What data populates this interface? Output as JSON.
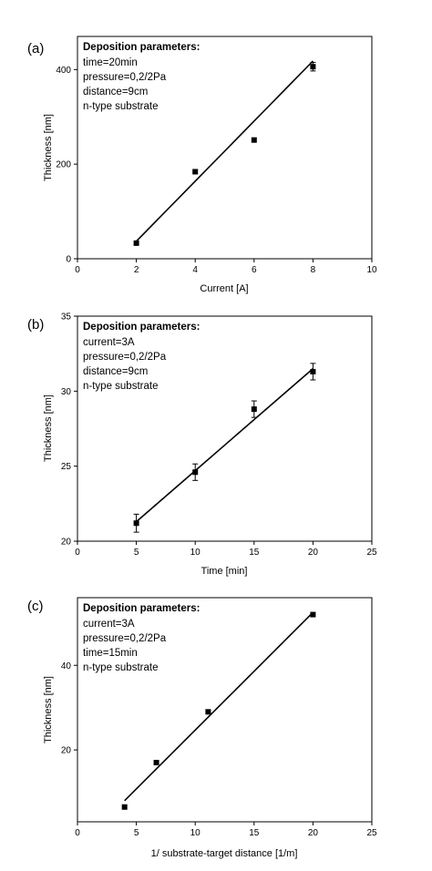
{
  "chart_data": [
    {
      "type": "scatter",
      "panel_label": "(a)",
      "xlabel": "Current [A]",
      "ylabel": "Thickness [nm]",
      "xlim": [
        0,
        10
      ],
      "ylim": [
        0,
        470
      ],
      "xticks": [
        0,
        2,
        4,
        6,
        8,
        10
      ],
      "yticks": [
        0,
        200,
        400
      ],
      "x": [
        2,
        4,
        6,
        8
      ],
      "y": [
        33,
        184,
        251,
        406
      ],
      "yerr": [
        0,
        0,
        0,
        9
      ],
      "fit": {
        "x": [
          2,
          8
        ],
        "y": [
          37,
          418
        ]
      },
      "annotation": {
        "title": "Deposition parameters:",
        "lines": [
          "time=20min",
          "pressure=0,2/2Pa",
          "distance=9cm",
          "n-type substrate"
        ]
      }
    },
    {
      "type": "scatter",
      "panel_label": "(b)",
      "xlabel": "Time [min]",
      "ylabel": "Thickness [nm]",
      "xlim": [
        0,
        25
      ],
      "ylim": [
        20,
        35
      ],
      "xticks": [
        0,
        5,
        10,
        15,
        20,
        25
      ],
      "yticks": [
        20,
        25,
        30,
        35
      ],
      "x": [
        5,
        10,
        15,
        20
      ],
      "y": [
        21.2,
        24.6,
        28.8,
        31.3
      ],
      "yerr": [
        0.6,
        0.55,
        0.55,
        0.55
      ],
      "fit": {
        "x": [
          5,
          20
        ],
        "y": [
          21.3,
          31.5
        ]
      },
      "annotation": {
        "title": "Deposition parameters:",
        "lines": [
          "current=3A",
          "pressure=0,2/2Pa",
          "distance=9cm",
          "n-type substrate"
        ]
      }
    },
    {
      "type": "scatter",
      "panel_label": "(c)",
      "xlabel": "1/ substrate-target distance [1/m]",
      "ylabel": "Thickness [nm]",
      "xlim": [
        0,
        25
      ],
      "ylim": [
        3,
        56
      ],
      "xticks": [
        0,
        5,
        10,
        15,
        20,
        25
      ],
      "yticks": [
        20,
        40
      ],
      "x": [
        4,
        6.7,
        11.1,
        20
      ],
      "y": [
        6.5,
        17,
        29,
        52
      ],
      "yerr": [
        0,
        0,
        0,
        0
      ],
      "fit": {
        "x": [
          4,
          20
        ],
        "y": [
          8,
          52.5
        ]
      },
      "annotation": {
        "title": "Deposition parameters:",
        "lines": [
          "current=3A",
          "pressure=0,2/2Pa",
          "time=15min",
          "n-type substrate"
        ]
      }
    }
  ]
}
